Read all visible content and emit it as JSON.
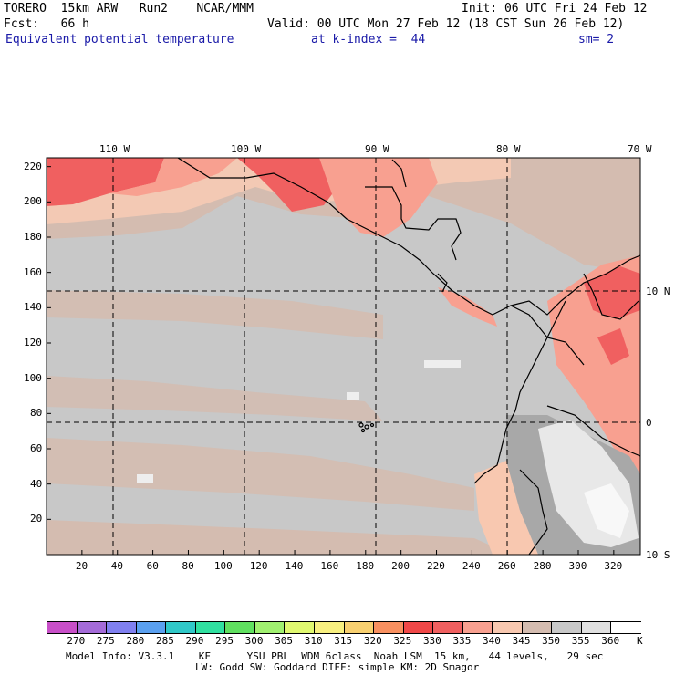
{
  "header": {
    "model": "TORERO  15km ARW   Run2    NCAR/MMM",
    "init": "Init: 06 UTC Fri 24 Feb 12",
    "fcst": "Fcst:   66 h",
    "valid": "Valid: 00 UTC Mon 27 Feb 12 (18 CST Sun 26 Feb 12)",
    "field": "Equivalent potential temperature",
    "level": "at k-index =  44",
    "smooth": "sm= 2"
  },
  "map": {
    "lon_labels": [
      "110 W",
      "100 W",
      "90 W",
      "80 W",
      "70 W"
    ],
    "lat_labels": [
      "10 N",
      "0",
      "10 S"
    ],
    "y_ticks": [
      "220",
      "200",
      "180",
      "160",
      "140",
      "120",
      "100",
      "80",
      "60",
      "40",
      "20"
    ],
    "x_ticks": [
      "20",
      "40",
      "60",
      "80",
      "100",
      "120",
      "140",
      "160",
      "180",
      "200",
      "220",
      "240",
      "260",
      "280",
      "300",
      "320"
    ],
    "grid_x_range": [
      0,
      335
    ],
    "grid_y_range": [
      0,
      225
    ]
  },
  "colorbar": {
    "labels": [
      "270",
      "275",
      "280",
      "285",
      "290",
      "295",
      "300",
      "305",
      "310",
      "315",
      "320",
      "325",
      "330",
      "335",
      "340",
      "345",
      "350",
      "355",
      "360",
      "K"
    ],
    "colors": [
      "#c84fc8",
      "#a46bd8",
      "#8080f0",
      "#5aa0f0",
      "#30c8c8",
      "#30e0a0",
      "#60e060",
      "#a0f070",
      "#e0f870",
      "#f8f080",
      "#f8d070",
      "#f89060",
      "#f04848",
      "#f06060",
      "#f8a090",
      "#f8c8b0",
      "#d4bcb0",
      "#c8c8c8",
      "#e0e0e0",
      "#ffffff"
    ],
    "colors_note_for_draw": ""
  },
  "footer": {
    "line1": "Model Info: V3.3.1    KF      YSU PBL  WDM 6class  Noah LSM  15 km,   44 levels,   29 sec",
    "line2": "LW: Godd SW: Goddard DIFF: simple KM: 2D Smagor"
  }
}
